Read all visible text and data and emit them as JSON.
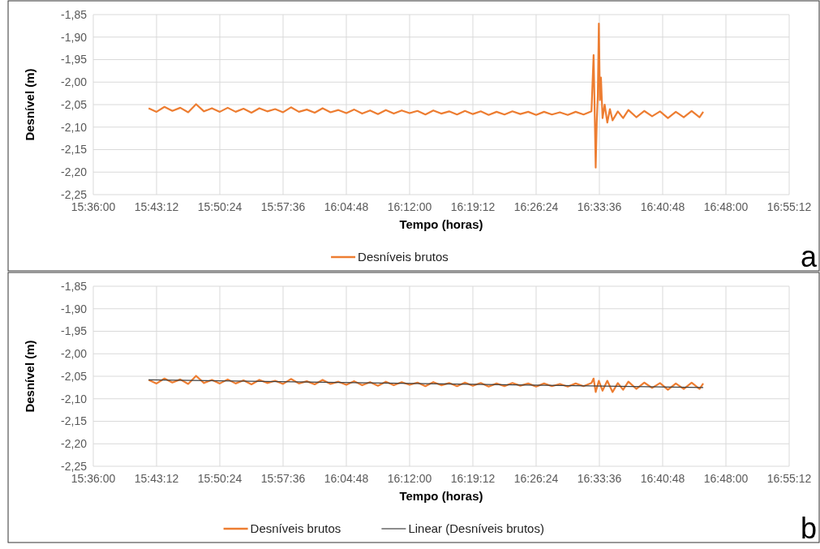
{
  "chart_data": [
    {
      "type": "line",
      "xlabel": "Tempo (horas)",
      "ylabel": "Desnível (m)",
      "annotations": [
        "a"
      ],
      "grid": true,
      "legend": "bottom",
      "line_style": "solid",
      "marker": "none",
      "xlim": [
        15.6,
        16.92
      ],
      "ylim": [
        -2.25,
        -1.85
      ],
      "xticks": [
        {
          "value": 15.6,
          "label": "15:36:00"
        },
        {
          "value": 15.72,
          "label": "15:43:12"
        },
        {
          "value": 15.84,
          "label": "15:50:24"
        },
        {
          "value": 15.96,
          "label": "15:57:36"
        },
        {
          "value": 16.08,
          "label": "16:04:48"
        },
        {
          "value": 16.2,
          "label": "16:12:00"
        },
        {
          "value": 16.32,
          "label": "16:19:12"
        },
        {
          "value": 16.44,
          "label": "16:26:24"
        },
        {
          "value": 16.56,
          "label": "16:33:36"
        },
        {
          "value": 16.68,
          "label": "16:40:48"
        },
        {
          "value": 16.8,
          "label": "16:48:00"
        },
        {
          "value": 16.92,
          "label": "16:55:12"
        }
      ],
      "yticks": [
        {
          "value": -1.85,
          "label": "-1,85"
        },
        {
          "value": -1.9,
          "label": "-1,90"
        },
        {
          "value": -1.95,
          "label": "-1,95"
        },
        {
          "value": -2.0,
          "label": "-2,00"
        },
        {
          "value": -2.05,
          "label": "-2,05"
        },
        {
          "value": -2.1,
          "label": "-2,10"
        },
        {
          "value": -2.15,
          "label": "-2,15"
        },
        {
          "value": -2.2,
          "label": "-2,20"
        },
        {
          "value": -2.25,
          "label": "-2,25"
        }
      ],
      "series": [
        {
          "name": "Desníveis brutos",
          "color": "#ed7d31",
          "x": [
            15.705,
            15.72,
            15.735,
            15.75,
            15.765,
            15.78,
            15.795,
            15.81,
            15.825,
            15.84,
            15.855,
            15.87,
            15.885,
            15.9,
            15.915,
            15.93,
            15.945,
            15.96,
            15.975,
            15.99,
            16.005,
            16.02,
            16.035,
            16.05,
            16.065,
            16.08,
            16.095,
            16.11,
            16.125,
            16.14,
            16.155,
            16.17,
            16.185,
            16.2,
            16.215,
            16.23,
            16.245,
            16.26,
            16.275,
            16.29,
            16.305,
            16.32,
            16.335,
            16.35,
            16.365,
            16.38,
            16.395,
            16.41,
            16.425,
            16.44,
            16.455,
            16.47,
            16.485,
            16.5,
            16.515,
            16.53,
            16.545,
            16.549,
            16.551,
            16.553,
            16.555,
            16.557,
            16.559,
            16.561,
            16.563,
            16.566,
            16.57,
            16.575,
            16.58,
            16.585,
            16.595,
            16.605,
            16.615,
            16.63,
            16.645,
            16.66,
            16.675,
            16.69,
            16.705,
            16.72,
            16.735,
            16.75,
            16.757
          ],
          "values": [
            -2.058,
            -2.066,
            -2.055,
            -2.064,
            -2.057,
            -2.067,
            -2.049,
            -2.065,
            -2.058,
            -2.066,
            -2.057,
            -2.066,
            -2.059,
            -2.068,
            -2.058,
            -2.065,
            -2.06,
            -2.067,
            -2.056,
            -2.066,
            -2.061,
            -2.068,
            -2.058,
            -2.067,
            -2.062,
            -2.069,
            -2.061,
            -2.07,
            -2.063,
            -2.071,
            -2.062,
            -2.07,
            -2.063,
            -2.069,
            -2.064,
            -2.072,
            -2.063,
            -2.07,
            -2.065,
            -2.072,
            -2.064,
            -2.071,
            -2.065,
            -2.073,
            -2.066,
            -2.072,
            -2.065,
            -2.071,
            -2.066,
            -2.073,
            -2.066,
            -2.072,
            -2.067,
            -2.073,
            -2.066,
            -2.072,
            -2.065,
            -1.94,
            -2.06,
            -2.19,
            -2.09,
            -2.03,
            -1.87,
            -2.04,
            -1.99,
            -2.08,
            -2.05,
            -2.09,
            -2.06,
            -2.085,
            -2.065,
            -2.08,
            -2.062,
            -2.078,
            -2.064,
            -2.076,
            -2.065,
            -2.08,
            -2.066,
            -2.078,
            -2.064,
            -2.078,
            -2.066
          ]
        }
      ]
    },
    {
      "type": "line",
      "xlabel": "Tempo (horas)",
      "ylabel": "Desnível (m)",
      "annotations": [
        "b"
      ],
      "grid": true,
      "legend": "bottom",
      "line_style": "solid",
      "marker": "none",
      "xlim": [
        15.6,
        16.92
      ],
      "ylim": [
        -2.25,
        -1.85
      ],
      "xticks": [
        {
          "value": 15.6,
          "label": "15:36:00"
        },
        {
          "value": 15.72,
          "label": "15:43:12"
        },
        {
          "value": 15.84,
          "label": "15:50:24"
        },
        {
          "value": 15.96,
          "label": "15:57:36"
        },
        {
          "value": 16.08,
          "label": "16:04:48"
        },
        {
          "value": 16.2,
          "label": "16:12:00"
        },
        {
          "value": 16.32,
          "label": "16:19:12"
        },
        {
          "value": 16.44,
          "label": "16:26:24"
        },
        {
          "value": 16.56,
          "label": "16:33:36"
        },
        {
          "value": 16.68,
          "label": "16:40:48"
        },
        {
          "value": 16.8,
          "label": "16:48:00"
        },
        {
          "value": 16.92,
          "label": "16:55:12"
        }
      ],
      "yticks": [
        {
          "value": -1.85,
          "label": "-1,85"
        },
        {
          "value": -1.9,
          "label": "-1,90"
        },
        {
          "value": -1.95,
          "label": "-1,95"
        },
        {
          "value": -2.0,
          "label": "-2,00"
        },
        {
          "value": -2.05,
          "label": "-2,05"
        },
        {
          "value": -2.1,
          "label": "-2,10"
        },
        {
          "value": -2.15,
          "label": "-2,15"
        },
        {
          "value": -2.2,
          "label": "-2,20"
        },
        {
          "value": -2.25,
          "label": "-2,25"
        }
      ],
      "series": [
        {
          "name": "Desníveis brutos",
          "color": "#ed7d31",
          "x": [
            15.705,
            15.72,
            15.735,
            15.75,
            15.765,
            15.78,
            15.795,
            15.81,
            15.825,
            15.84,
            15.855,
            15.87,
            15.885,
            15.9,
            15.915,
            15.93,
            15.945,
            15.96,
            15.975,
            15.99,
            16.005,
            16.02,
            16.035,
            16.05,
            16.065,
            16.08,
            16.095,
            16.11,
            16.125,
            16.14,
            16.155,
            16.17,
            16.185,
            16.2,
            16.215,
            16.23,
            16.245,
            16.26,
            16.275,
            16.29,
            16.305,
            16.32,
            16.335,
            16.35,
            16.365,
            16.38,
            16.395,
            16.41,
            16.425,
            16.44,
            16.455,
            16.47,
            16.485,
            16.5,
            16.515,
            16.53,
            16.545,
            16.549,
            16.553,
            16.559,
            16.566,
            16.575,
            16.585,
            16.595,
            16.605,
            16.615,
            16.63,
            16.645,
            16.66,
            16.675,
            16.69,
            16.705,
            16.72,
            16.735,
            16.75,
            16.757
          ],
          "values": [
            -2.058,
            -2.066,
            -2.055,
            -2.064,
            -2.057,
            -2.067,
            -2.049,
            -2.065,
            -2.058,
            -2.066,
            -2.057,
            -2.066,
            -2.059,
            -2.068,
            -2.058,
            -2.065,
            -2.06,
            -2.067,
            -2.056,
            -2.066,
            -2.061,
            -2.068,
            -2.058,
            -2.067,
            -2.062,
            -2.069,
            -2.061,
            -2.07,
            -2.063,
            -2.071,
            -2.062,
            -2.07,
            -2.063,
            -2.069,
            -2.064,
            -2.072,
            -2.063,
            -2.07,
            -2.065,
            -2.072,
            -2.064,
            -2.071,
            -2.065,
            -2.073,
            -2.066,
            -2.072,
            -2.065,
            -2.071,
            -2.066,
            -2.073,
            -2.066,
            -2.072,
            -2.067,
            -2.073,
            -2.066,
            -2.072,
            -2.065,
            -2.055,
            -2.085,
            -2.06,
            -2.082,
            -2.06,
            -2.085,
            -2.065,
            -2.08,
            -2.062,
            -2.078,
            -2.064,
            -2.076,
            -2.065,
            -2.08,
            -2.066,
            -2.078,
            -2.064,
            -2.078,
            -2.066
          ]
        },
        {
          "name": "Linear (Desníveis brutos)",
          "color": "#404040",
          "type": "line",
          "x": [
            15.705,
            16.757
          ],
          "values": [
            -2.058,
            -2.075
          ]
        }
      ]
    }
  ]
}
